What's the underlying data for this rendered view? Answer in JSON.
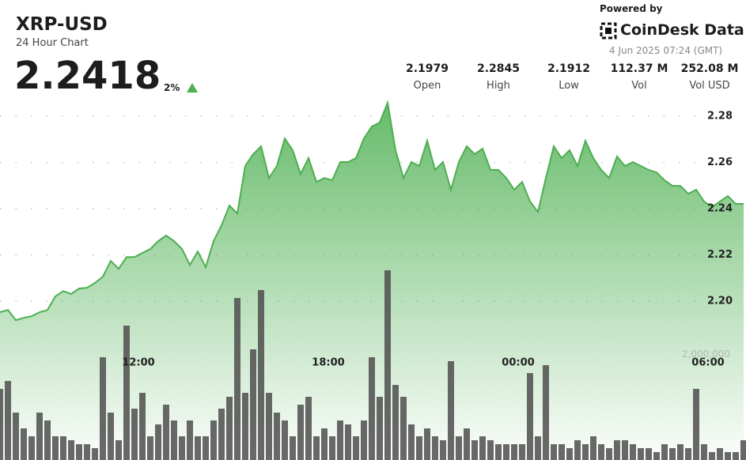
{
  "header": {
    "symbol": "XRP-USD",
    "subtitle": "24 Hour Chart",
    "price": "2.2418",
    "change": "2%",
    "powered_by": "Powered by",
    "brand": "CoinDesk Data",
    "timestamp": "4 Jun 2025 07:24 (GMT)",
    "stats": [
      {
        "value": "2.1979",
        "label": "Open"
      },
      {
        "value": "2.2845",
        "label": "High"
      },
      {
        "value": "2.1912",
        "label": "Low"
      },
      {
        "value": "112.37 M",
        "label": "Vol"
      },
      {
        "value": "252.08 M",
        "label": "Vol USD"
      }
    ]
  },
  "chart_data": {
    "type": "area",
    "xlim": [
      0,
      94
    ],
    "xticks": [
      {
        "value": 17.5,
        "label": "12:00"
      },
      {
        "value": 41.5,
        "label": "18:00"
      },
      {
        "value": 65.5,
        "label": "00:00"
      },
      {
        "value": 89.5,
        "label": "06:00"
      }
    ],
    "ylim": [
      2.1313,
      2.3303
    ],
    "yticks": [
      {
        "value": 2.2,
        "label": "2.20"
      },
      {
        "value": 2.22,
        "label": "2.22"
      },
      {
        "value": 2.24,
        "label": "2.24"
      },
      {
        "value": 2.26,
        "label": "2.26"
      },
      {
        "value": 2.28,
        "label": "2.28"
      }
    ],
    "y2lim": [
      0,
      8730000
    ],
    "y2ticks": [
      {
        "value": 2000000,
        "label": "2,000,000"
      }
    ],
    "grid": true,
    "series": [
      {
        "type": "area",
        "color": "#4caf50",
        "values": [
          2.1952,
          2.1962,
          2.1918,
          2.1928,
          2.1935,
          2.1952,
          2.1962,
          2.2021,
          2.2044,
          2.2031,
          2.2055,
          2.2058,
          2.2079,
          2.2106,
          2.2174,
          2.214,
          2.2191,
          2.2191,
          2.2209,
          2.2226,
          2.226,
          2.2284,
          2.226,
          2.2226,
          2.2157,
          2.2215,
          2.2147,
          2.226,
          2.2328,
          2.2414,
          2.2379,
          2.2585,
          2.2636,
          2.267,
          2.2533,
          2.2585,
          2.2704,
          2.2653,
          2.255,
          2.2619,
          2.2516,
          2.2533,
          2.2523,
          2.2602,
          2.2602,
          2.2619,
          2.2704,
          2.2756,
          2.2773,
          2.2858,
          2.2653,
          2.2533,
          2.2602,
          2.2585,
          2.2694,
          2.2568,
          2.2602,
          2.2482,
          2.2602,
          2.267,
          2.2636,
          2.266,
          2.2568,
          2.2568,
          2.2533,
          2.2482,
          2.2516,
          2.2431,
          2.2386,
          2.2533,
          2.267,
          2.2619,
          2.2653,
          2.2585,
          2.2694,
          2.2619,
          2.2568,
          2.2533,
          2.2626,
          2.2585,
          2.2602,
          2.2585,
          2.2568,
          2.2557,
          2.2523,
          2.2499,
          2.2499,
          2.2465,
          2.2482,
          2.2431,
          2.2407,
          2.2431,
          2.2455,
          2.2421,
          2.2421
        ]
      },
      {
        "type": "bar",
        "axis": "y2",
        "color": "#4d4d4d",
        "values": [
          1350000,
          1500000,
          900000,
          600000,
          450000,
          900000,
          750000,
          450000,
          450000,
          375000,
          300000,
          300000,
          225000,
          1950000,
          900000,
          375000,
          2550000,
          975000,
          1275000,
          450000,
          675000,
          1050000,
          750000,
          450000,
          750000,
          450000,
          450000,
          750000,
          975000,
          1200000,
          3075000,
          1275000,
          2100000,
          3225000,
          1275000,
          900000,
          750000,
          450000,
          1050000,
          1200000,
          450000,
          600000,
          450000,
          750000,
          675000,
          450000,
          750000,
          1950000,
          1200000,
          3600000,
          1425000,
          1200000,
          675000,
          450000,
          600000,
          450000,
          375000,
          1875000,
          450000,
          600000,
          375000,
          450000,
          375000,
          300000,
          300000,
          300000,
          300000,
          1650000,
          450000,
          1800000,
          300000,
          300000,
          225000,
          375000,
          300000,
          450000,
          300000,
          225000,
          375000,
          375000,
          300000,
          225000,
          225000,
          150000,
          300000,
          225000,
          300000,
          225000,
          1350000,
          300000,
          150000,
          225000,
          150000,
          150000,
          375000
        ]
      }
    ]
  }
}
